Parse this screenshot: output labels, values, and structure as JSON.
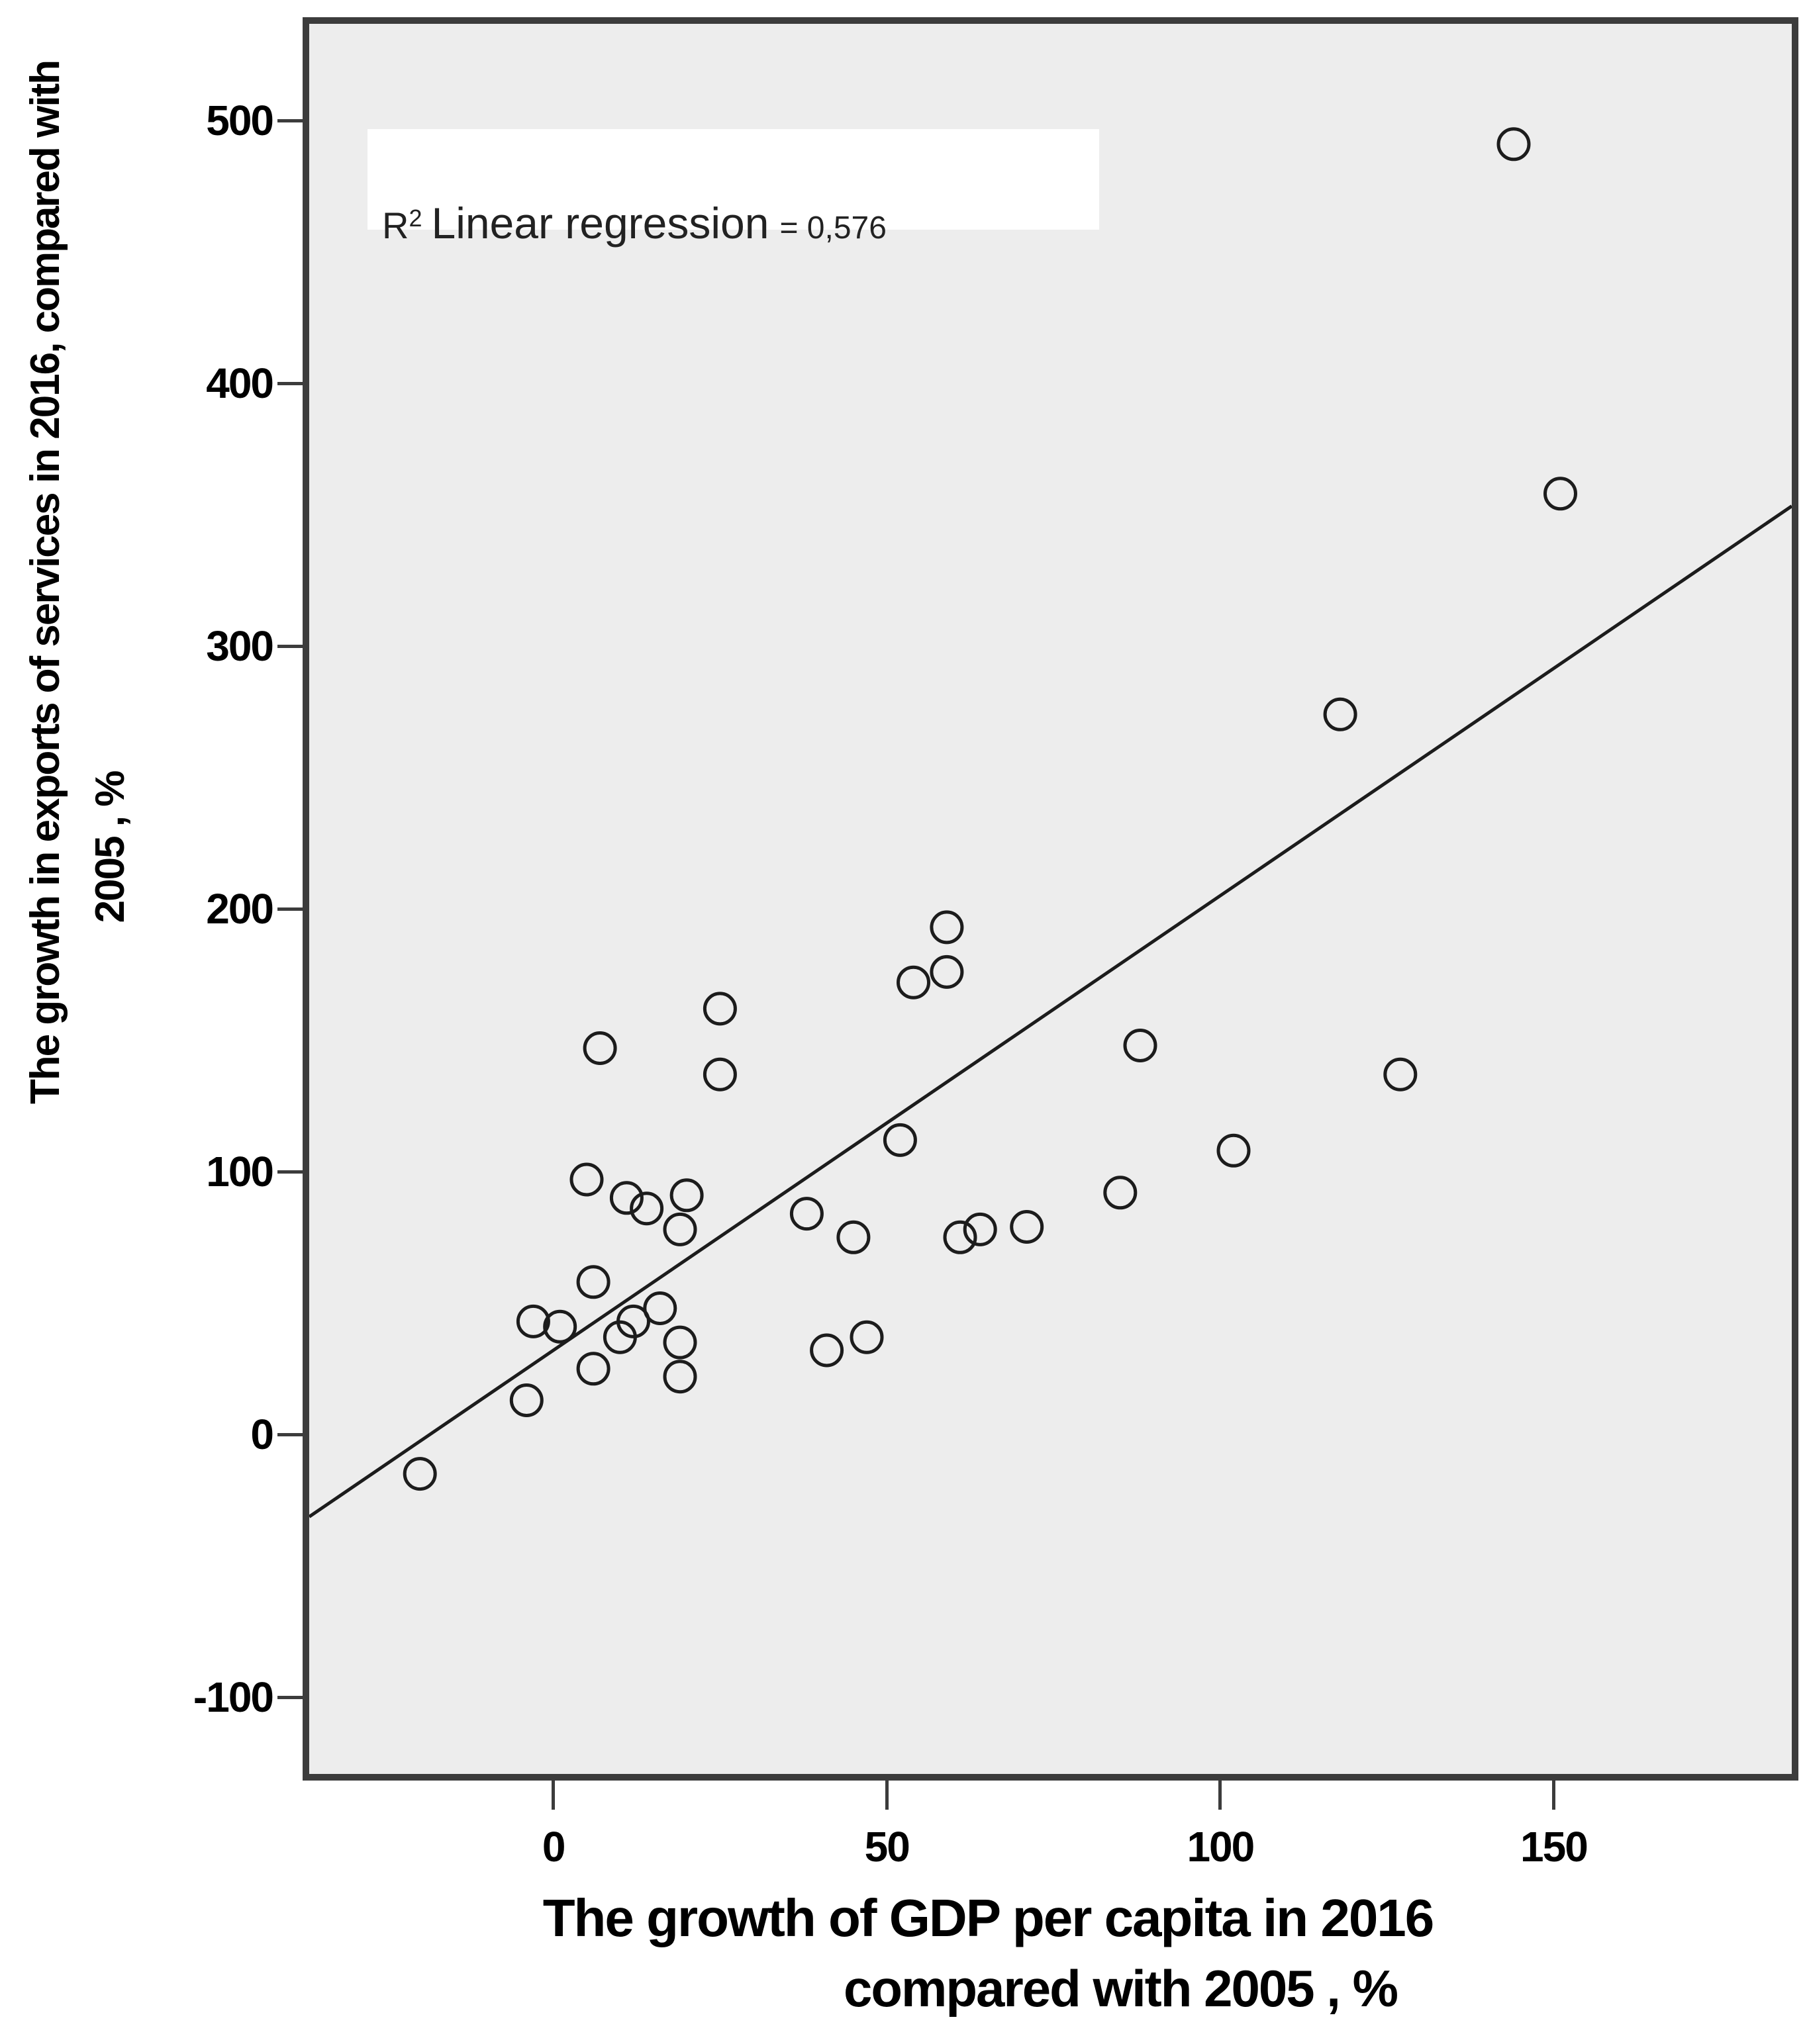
{
  "chart_data": {
    "type": "scatter",
    "title": "",
    "xlabel_line1": "The growth of GDP per capita in 2016",
    "xlabel_line2": "compared with 2005 , %",
    "ylabel_line1": "The growth in exports of services in 2016, compared with",
    "ylabel_line2": "2005 , %",
    "annotation": {
      "r": "R",
      "sup": "2",
      "text": "Linear regression",
      "value": "= 0,576",
      "r_squared": "0,576"
    },
    "x_ticks": [
      0,
      50,
      100,
      150
    ],
    "y_ticks": [
      500,
      400,
      300,
      200,
      100,
      0,
      -100
    ],
    "xlim": [
      -36.6,
      185.7
    ],
    "ylim": [
      -129.2,
      536.8
    ],
    "grid": false,
    "legend": false,
    "marker_style": "open-circle",
    "points": [
      [
        144,
        491
      ],
      [
        151,
        358
      ],
      [
        118,
        274
      ],
      [
        127,
        137
      ],
      [
        102,
        108
      ],
      [
        88,
        148
      ],
      [
        85,
        92
      ],
      [
        59,
        193
      ],
      [
        59,
        176
      ],
      [
        54,
        172
      ],
      [
        52,
        112
      ],
      [
        71,
        79
      ],
      [
        64,
        78
      ],
      [
        61,
        75
      ],
      [
        45,
        75
      ],
      [
        38,
        84
      ],
      [
        47,
        37
      ],
      [
        41,
        32
      ],
      [
        25,
        162
      ],
      [
        25,
        137
      ],
      [
        7,
        147
      ],
      [
        5,
        97
      ],
      [
        20,
        91
      ],
      [
        11,
        90
      ],
      [
        14,
        86
      ],
      [
        19,
        78
      ],
      [
        6,
        58
      ],
      [
        16,
        48
      ],
      [
        12,
        43
      ],
      [
        10,
        37
      ],
      [
        19,
        35
      ],
      [
        19,
        22
      ],
      [
        6,
        25
      ],
      [
        -3,
        43
      ],
      [
        1,
        41
      ],
      [
        -4,
        13
      ],
      [
        -20,
        -15
      ]
    ],
    "regression": {
      "slope": 1.73,
      "intercept": 32,
      "x_start": -36.6,
      "x_end": 185.7
    },
    "colors": {
      "plot_bg": "#ededed",
      "frame": "#3c3c3c",
      "marker": "#1c1c1c",
      "line": "#1c1c1c",
      "annotation_bg": "#ffffff",
      "text": "#000000"
    }
  }
}
